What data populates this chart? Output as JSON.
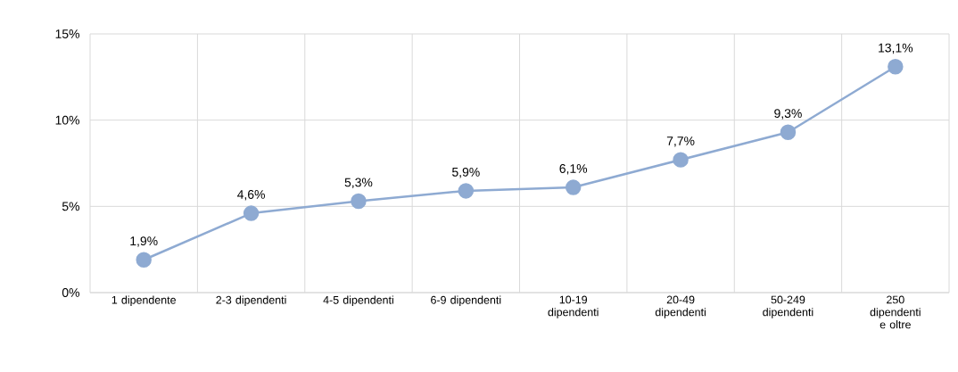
{
  "chart_data": {
    "type": "line",
    "categories": [
      "1 dipendente",
      "2-3 dipendenti",
      "4-5 dipendenti",
      "6-9 dipendenti",
      "10-19 dipendenti",
      "20-49 dipendenti",
      "50-249 dipendenti",
      "250 dipendenti e oltre"
    ],
    "values": [
      1.9,
      4.6,
      5.3,
      5.9,
      6.1,
      7.7,
      9.3,
      13.1
    ],
    "value_labels": [
      "1,9%",
      "4,6%",
      "5,3%",
      "5,9%",
      "6,1%",
      "7,7%",
      "9,3%",
      "13,1%"
    ],
    "color": "#8eaad2",
    "marker": "circle",
    "line_style": "solid",
    "ylim": [
      0,
      15
    ],
    "yticks": [
      {
        "value": 0,
        "label": "0%"
      },
      {
        "value": 5,
        "label": "5%"
      },
      {
        "value": 10,
        "label": "10%"
      },
      {
        "value": 15,
        "label": "15%"
      }
    ],
    "grid": true
  }
}
